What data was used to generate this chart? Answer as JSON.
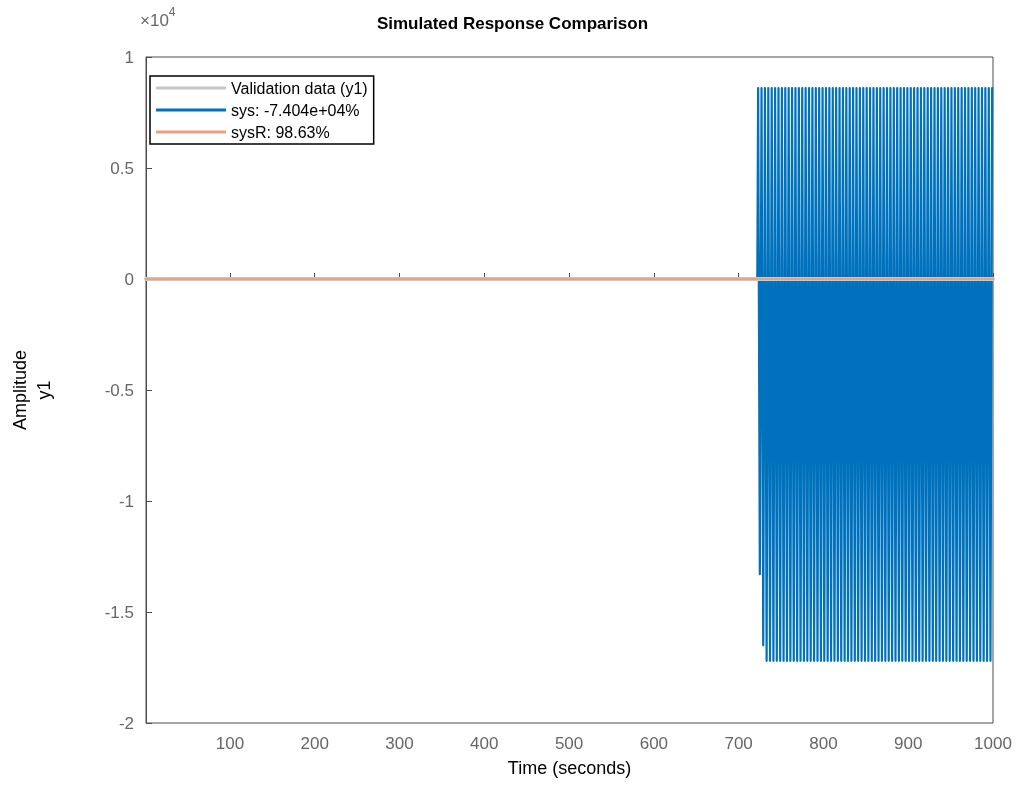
{
  "chart_data": {
    "type": "line",
    "title": "Simulated Response Comparison",
    "xlabel": "Time (seconds)",
    "ylabel": "Amplitude\ny1",
    "annotations": [
      "×10$^{4}$"
    ],
    "xlim": [
      1,
      1000
    ],
    "xticks": [
      100,
      200,
      300,
      400,
      500,
      600,
      700,
      800,
      900,
      1000
    ],
    "ylim": [
      -2,
      1
    ],
    "yticks": [
      -2,
      -1.5,
      -1,
      -0.5,
      0,
      0.5,
      1
    ],
    "grid": false,
    "legend": "top left",
    "marker": "none",
    "line_style": "solid",
    "series": [
      {
        "name": "sys: -7.404e+04%",
        "color": "#0072bd",
        "x": [
          1,
          722,
          723,
          725,
          727,
          729,
          731,
          733,
          735,
          737,
          739,
          741,
          743,
          745,
          747,
          749,
          751,
          753,
          755,
          757,
          759,
          761,
          763,
          765,
          767,
          769,
          771,
          773,
          775,
          777,
          779,
          781,
          783,
          785,
          787,
          789,
          791,
          793,
          795,
          797,
          799,
          801,
          803,
          805,
          807,
          809,
          811,
          813,
          815,
          817,
          819,
          821,
          823,
          825,
          827,
          829,
          831,
          833,
          835,
          837,
          839,
          841,
          843,
          845,
          847,
          849,
          851,
          853,
          855,
          857,
          859,
          861,
          863,
          865,
          867,
          869,
          871,
          873,
          875,
          877,
          879,
          881,
          883,
          885,
          887,
          889,
          891,
          893,
          895,
          897,
          899,
          901,
          903,
          905,
          907,
          909,
          911,
          913,
          915,
          917,
          919,
          921,
          923,
          925,
          927,
          929,
          931,
          933,
          935,
          937,
          939,
          941,
          943,
          945,
          947,
          949,
          951,
          953,
          955,
          957,
          959,
          961,
          963,
          965,
          967,
          969,
          971,
          973,
          975,
          977,
          979,
          981,
          983,
          985,
          987,
          989,
          991,
          993,
          995,
          997,
          999
        ],
        "values": [
          0,
          0,
          0.86,
          -1.33,
          0.86,
          -1.65,
          0.86,
          -1.72,
          0.86,
          -1.72,
          0.86,
          -1.72,
          0.86,
          -1.72,
          0.86,
          -1.72,
          0.86,
          -1.72,
          0.86,
          -1.72,
          0.86,
          -1.72,
          0.86,
          -1.72,
          0.86,
          -1.72,
          0.86,
          -1.72,
          0.86,
          -1.72,
          0.86,
          -1.72,
          0.86,
          -1.72,
          0.86,
          -1.72,
          0.86,
          -1.72,
          0.86,
          -1.72,
          0.86,
          -1.72,
          0.86,
          -1.72,
          0.86,
          -1.72,
          0.86,
          -1.72,
          0.86,
          -1.72,
          0.86,
          -1.72,
          0.86,
          -1.72,
          0.86,
          -1.72,
          0.86,
          -1.72,
          0.86,
          -1.72,
          0.86,
          -1.72,
          0.86,
          -1.72,
          0.86,
          -1.72,
          0.86,
          -1.72,
          0.86,
          -1.72,
          0.86,
          -1.72,
          0.86,
          -1.72,
          0.86,
          -1.72,
          0.86,
          -1.72,
          0.86,
          -1.72,
          0.86,
          -1.72,
          0.86,
          -1.72,
          0.86,
          -1.72,
          0.86,
          -1.72,
          0.86,
          -1.72,
          0.86,
          -1.72,
          0.86,
          -1.72,
          0.86,
          -1.72,
          0.86,
          -1.72,
          0.86,
          -1.72,
          0.86,
          -1.72,
          0.86,
          -1.72,
          0.86,
          -1.72,
          0.86,
          -1.72,
          0.86,
          -1.72,
          0.86,
          -1.72,
          0.86,
          -1.72,
          0.86,
          -1.72,
          0.86,
          -1.72,
          0.86,
          -1.72,
          0.86,
          -1.72,
          0.86,
          -1.72,
          0.86,
          -1.72,
          0.86,
          -1.72,
          0.86,
          -1.72,
          0.86,
          -1.72,
          0.86,
          -1.72,
          0.86,
          -1.72,
          0.86,
          -1.72,
          0.86,
          -1.72,
          0.86
        ]
      },
      {
        "name": "Validation data (y1)",
        "color": "#c8c8c8",
        "x": [
          1,
          1000
        ],
        "values": [
          0,
          0
        ]
      },
      {
        "name": "sysR: 98.63%",
        "color": "#eda07e",
        "x": [
          1,
          1000
        ],
        "values": [
          0,
          0
        ]
      }
    ]
  }
}
